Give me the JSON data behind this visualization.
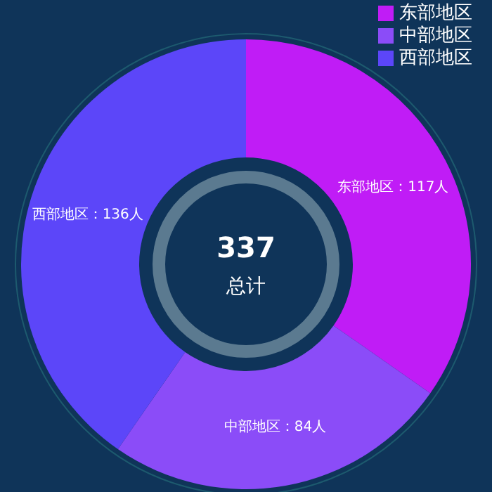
{
  "chart_data": {
    "type": "donut",
    "categories": [
      "东部地区",
      "中部地区",
      "西部地区"
    ],
    "values": [
      117,
      84,
      136
    ],
    "colors": [
      "#c01cf6",
      "#8b4cf8",
      "#5c46f9"
    ],
    "value_labels": [
      "东部地区：117人",
      "中部地区：84人",
      "西部地区：136人"
    ],
    "annotations": [
      "337",
      "总计"
    ],
    "legend": "top right"
  }
}
